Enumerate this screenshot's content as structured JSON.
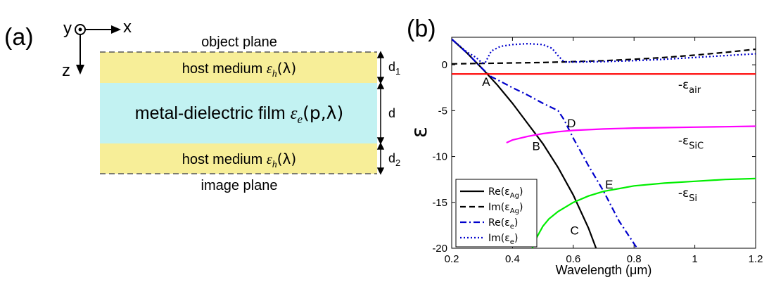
{
  "panel_a": {
    "label": "(a)",
    "axis_y": "y",
    "axis_x": "x",
    "axis_z": "z",
    "object_plane": "object plane",
    "image_plane": "image plane",
    "host_top": {
      "text": "host medium ",
      "eps": "ε",
      "sub": "h",
      "arg": "(λ)"
    },
    "film": {
      "text": "metal-dielectric film ",
      "eps": "ε",
      "sub": "e",
      "arg": "(p,λ)"
    },
    "host_bottom": {
      "text": "host medium ",
      "eps": "ε",
      "sub": "h",
      "arg": "(λ)"
    },
    "d1": {
      "main": "d",
      "sub": "1"
    },
    "d": "d",
    "d2": {
      "main": "d",
      "sub": "2"
    },
    "colors": {
      "host": "#f7ee98",
      "film": "#c2f2f2"
    }
  },
  "panel_b": {
    "label": "(b)",
    "chart_data": {
      "type": "line",
      "xlabel": "Wavelength (μm)",
      "ylabel": "ε",
      "xlim": [
        0.2,
        1.2
      ],
      "ylim": [
        -20,
        3
      ],
      "xticks": [
        "0.2",
        "0.4",
        "0.6",
        "0.8",
        "1",
        "1.2"
      ],
      "yticks": [
        "0",
        "-5",
        "-10",
        "-15",
        "-20"
      ],
      "legend": "bottom-left",
      "series": [
        {
          "name": "Re(εAg)",
          "legend_main": "Re(ε",
          "legend_sub": "Ag",
          "legend_tail": ")",
          "color": "#000000",
          "dash": "solid",
          "x": [
            0.2,
            0.25,
            0.3,
            0.35,
            0.4,
            0.45,
            0.5,
            0.55,
            0.6,
            0.65,
            0.675
          ],
          "y": [
            2.8,
            1.3,
            -0.4,
            -2.2,
            -4.2,
            -6.4,
            -8.6,
            -11.2,
            -14.2,
            -17.8,
            -20
          ]
        },
        {
          "name": "Im(εAg)",
          "legend_main": "Im(ε",
          "legend_sub": "Ag",
          "legend_tail": ")",
          "color": "#000000",
          "dash": "dashed",
          "x": [
            0.2,
            0.3,
            0.4,
            0.5,
            0.6,
            0.7,
            0.8,
            0.9,
            1.0,
            1.1,
            1.2
          ],
          "y": [
            0.1,
            0.15,
            0.2,
            0.25,
            0.35,
            0.45,
            0.6,
            0.8,
            1.05,
            1.35,
            1.7
          ]
        },
        {
          "name": "Re(εe)",
          "legend_main": "Re(ε",
          "legend_sub": "e",
          "legend_tail": ")",
          "color": "#0000cc",
          "dash": "dashdot",
          "x": [
            0.2,
            0.25,
            0.3,
            0.33,
            0.36,
            0.4,
            0.45,
            0.5,
            0.55,
            0.57,
            0.6,
            0.65,
            0.7,
            0.75,
            0.8,
            0.81
          ],
          "y": [
            2.8,
            1.3,
            -0.4,
            -1.3,
            -1.8,
            -2.5,
            -3.3,
            -4.2,
            -5.0,
            -6.0,
            -8.0,
            -11.0,
            -13.8,
            -17.0,
            -19.5,
            -20
          ]
        },
        {
          "name": "Im(εe)",
          "legend_main": "Im(ε",
          "legend_sub": "e",
          "legend_tail": ")",
          "color": "#0000cc",
          "dash": "dotted",
          "x": [
            0.2,
            0.25,
            0.28,
            0.3,
            0.31,
            0.33,
            0.36,
            0.4,
            0.45,
            0.5,
            0.53,
            0.55,
            0.57,
            0.6,
            0.7,
            0.8,
            0.9,
            1.0,
            1.1,
            1.2
          ],
          "y": [
            2.8,
            1.4,
            0.8,
            0.2,
            0.2,
            1.5,
            2.0,
            2.2,
            2.3,
            2.2,
            1.8,
            1.0,
            0.3,
            0.3,
            0.35,
            0.45,
            0.6,
            0.8,
            1.0,
            1.2
          ]
        },
        {
          "name": "-εair",
          "color": "#ff0000",
          "dash": "solid",
          "x": [
            0.2,
            1.2
          ],
          "y": [
            -1,
            -1
          ]
        },
        {
          "name": "-εSiC",
          "color": "#ff00ff",
          "dash": "solid",
          "x": [
            0.38,
            0.4,
            0.45,
            0.5,
            0.55,
            0.6,
            0.7,
            0.8,
            0.9,
            1.0,
            1.1,
            1.2
          ],
          "y": [
            -8.5,
            -8.2,
            -7.8,
            -7.5,
            -7.3,
            -7.15,
            -7.0,
            -6.9,
            -6.85,
            -6.8,
            -6.75,
            -6.7
          ]
        },
        {
          "name": "-εSi",
          "color": "#00ee00",
          "dash": "solid",
          "x": [
            0.465,
            0.48,
            0.5,
            0.52,
            0.55,
            0.6,
            0.65,
            0.7,
            0.8,
            0.9,
            1.0,
            1.1,
            1.2
          ],
          "y": [
            -20,
            -18.8,
            -17.6,
            -16.8,
            -16.0,
            -15.0,
            -14.3,
            -13.8,
            -13.2,
            -12.9,
            -12.7,
            -12.5,
            -12.4
          ]
        }
      ],
      "curve_labels": [
        {
          "main": "-ε",
          "sub": "air",
          "x": 0.945,
          "y": -2.6
        },
        {
          "main": "-ε",
          "sub": "SiC",
          "x": 0.945,
          "y": -8.7
        },
        {
          "main": "-ε",
          "sub": "Si",
          "x": 0.945,
          "y": -14.4
        }
      ],
      "point_labels": [
        {
          "text": "A",
          "x": 0.3,
          "y": -2.3
        },
        {
          "text": "B",
          "x": 0.465,
          "y": -9.3
        },
        {
          "text": "C",
          "x": 0.59,
          "y": -18.5
        },
        {
          "text": "D",
          "x": 0.58,
          "y": -6.8
        },
        {
          "text": "E",
          "x": 0.705,
          "y": -13.5
        }
      ]
    }
  }
}
